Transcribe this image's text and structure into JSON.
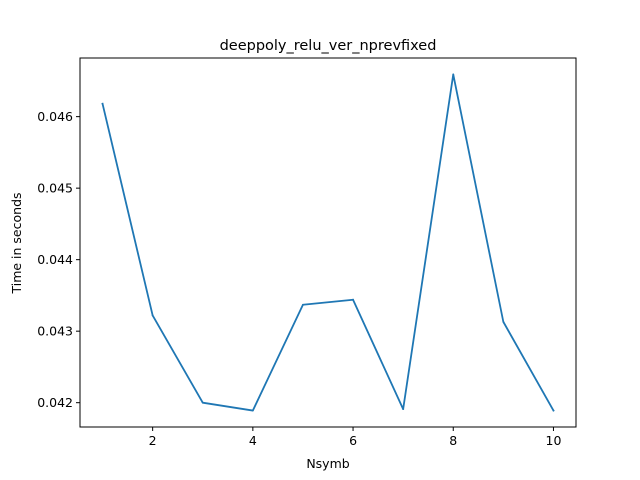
{
  "chart_data": {
    "type": "line",
    "title": "deeppoly_relu_ver_nprevfixed",
    "xlabel": "Nsymb",
    "ylabel": "Time in seconds",
    "x": [
      1,
      2,
      3,
      4,
      5,
      6,
      7,
      8,
      9,
      10
    ],
    "series": [
      {
        "values": [
          0.04618,
          0.04322,
          0.042,
          0.04189,
          0.04337,
          0.04344,
          0.04191,
          0.04659,
          0.04313,
          0.04189
        ],
        "color": "#1f77b4"
      }
    ],
    "xticks": [
      2,
      4,
      6,
      8,
      10
    ],
    "xtick_labels": [
      "2",
      "4",
      "6",
      "8",
      "10"
    ],
    "yticks": [
      0.042,
      0.043,
      0.044,
      0.045,
      0.046
    ],
    "ytick_labels": [
      "0.042",
      "0.043",
      "0.044",
      "0.045",
      "0.046"
    ],
    "xlim": [
      0.55,
      10.45
    ],
    "ylim": [
      0.04166,
      0.04682
    ],
    "grid": false,
    "legend": "none"
  }
}
